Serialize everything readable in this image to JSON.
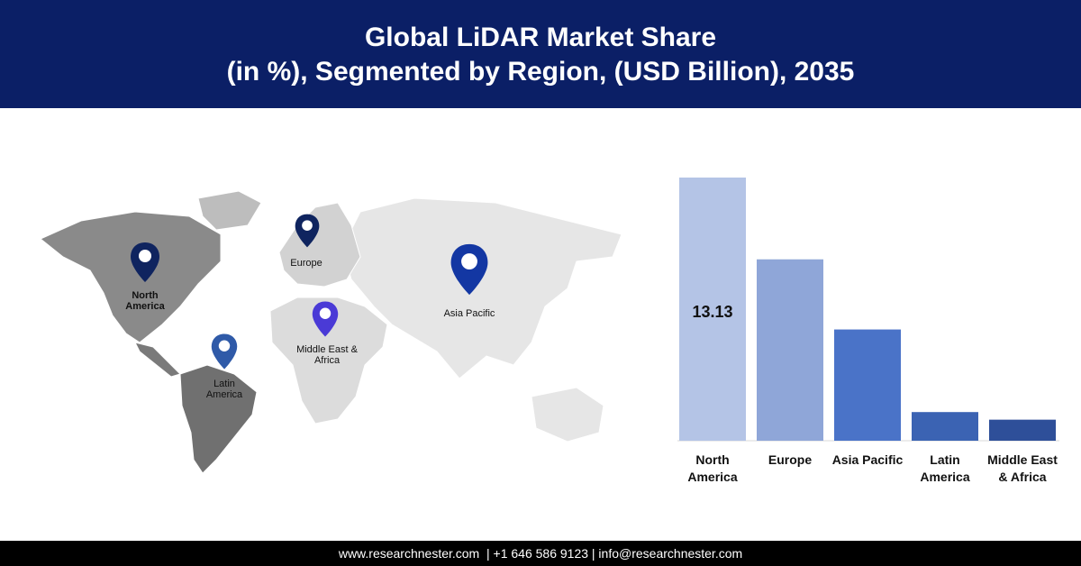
{
  "header": {
    "title_line1": "Global LiDAR Market Share",
    "title_line2": "(in %), Segmented by Region, (USD Billion), 2035"
  },
  "map": {
    "pins": [
      {
        "id": "north-america",
        "label_lines": [
          "North",
          "America"
        ],
        "color": "#0f245f"
      },
      {
        "id": "europe",
        "label_lines": [
          "Europe"
        ],
        "color": "#0f245f"
      },
      {
        "id": "asia-pacific",
        "label_lines": [
          "Asia Pacific"
        ],
        "color": "#1337a3"
      },
      {
        "id": "mea",
        "label_lines": [
          "Middle East &",
          "Africa"
        ],
        "color": "#4a3ad6"
      },
      {
        "id": "latin-america",
        "label_lines": [
          "Latin",
          "America"
        ],
        "color": "#2f5aa8"
      }
    ]
  },
  "chart_data": {
    "type": "bar",
    "categories": [
      "North America",
      "Europe",
      "Asia Pacific",
      "Latin America",
      "Middle East & Africa"
    ],
    "category_label_lines": [
      [
        "North",
        "America"
      ],
      [
        "Europe"
      ],
      [
        "Asia Pacific"
      ],
      [
        "Latin",
        "America"
      ],
      [
        "Middle East",
        "& Africa"
      ]
    ],
    "values": [
      13.13,
      9.05,
      5.55,
      1.43,
      1.05
    ],
    "data_labels": [
      "13.13",
      "",
      "",
      "",
      ""
    ],
    "colors": [
      "#b4c4e6",
      "#8fa6d8",
      "#4a73c8",
      "#3b63b3",
      "#2e4f99"
    ],
    "ylim": [
      0,
      13.13
    ],
    "grid": false,
    "title": "",
    "xlabel": "",
    "ylabel": ""
  },
  "footer": {
    "text": "www.researchnester.com  | +1 646 586 9123 | info@researchnester.com"
  }
}
